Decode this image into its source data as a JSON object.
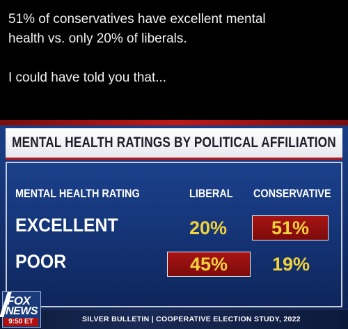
{
  "post": {
    "line1": "51% of conservatives have excellent mental",
    "line2": "health vs. only 20% of liberals.",
    "line3": "I could have told you that..."
  },
  "graphic": {
    "title": "MENTAL HEALTH RATINGS BY POLITICAL AFFILIATION",
    "headers": {
      "rating": "MENTAL HEALTH RATING",
      "liberal": "LIBERAL",
      "conservative": "CONSERVATIVE"
    },
    "rows": [
      {
        "label": "EXCELLENT",
        "liberal": "20%",
        "conservative": "51%"
      },
      {
        "label": "POOR",
        "liberal": "45%",
        "conservative": "19%"
      }
    ],
    "source": "SILVER BULLETIN | COOPERATIVE ELECTION STUDY, 2022",
    "logo": {
      "top": "FOX",
      "bottom": "NEWS",
      "time": "9:50 ET"
    },
    "colors": {
      "highlight": "#a81414",
      "value": "#f2d23c",
      "background": "#12306e"
    }
  }
}
